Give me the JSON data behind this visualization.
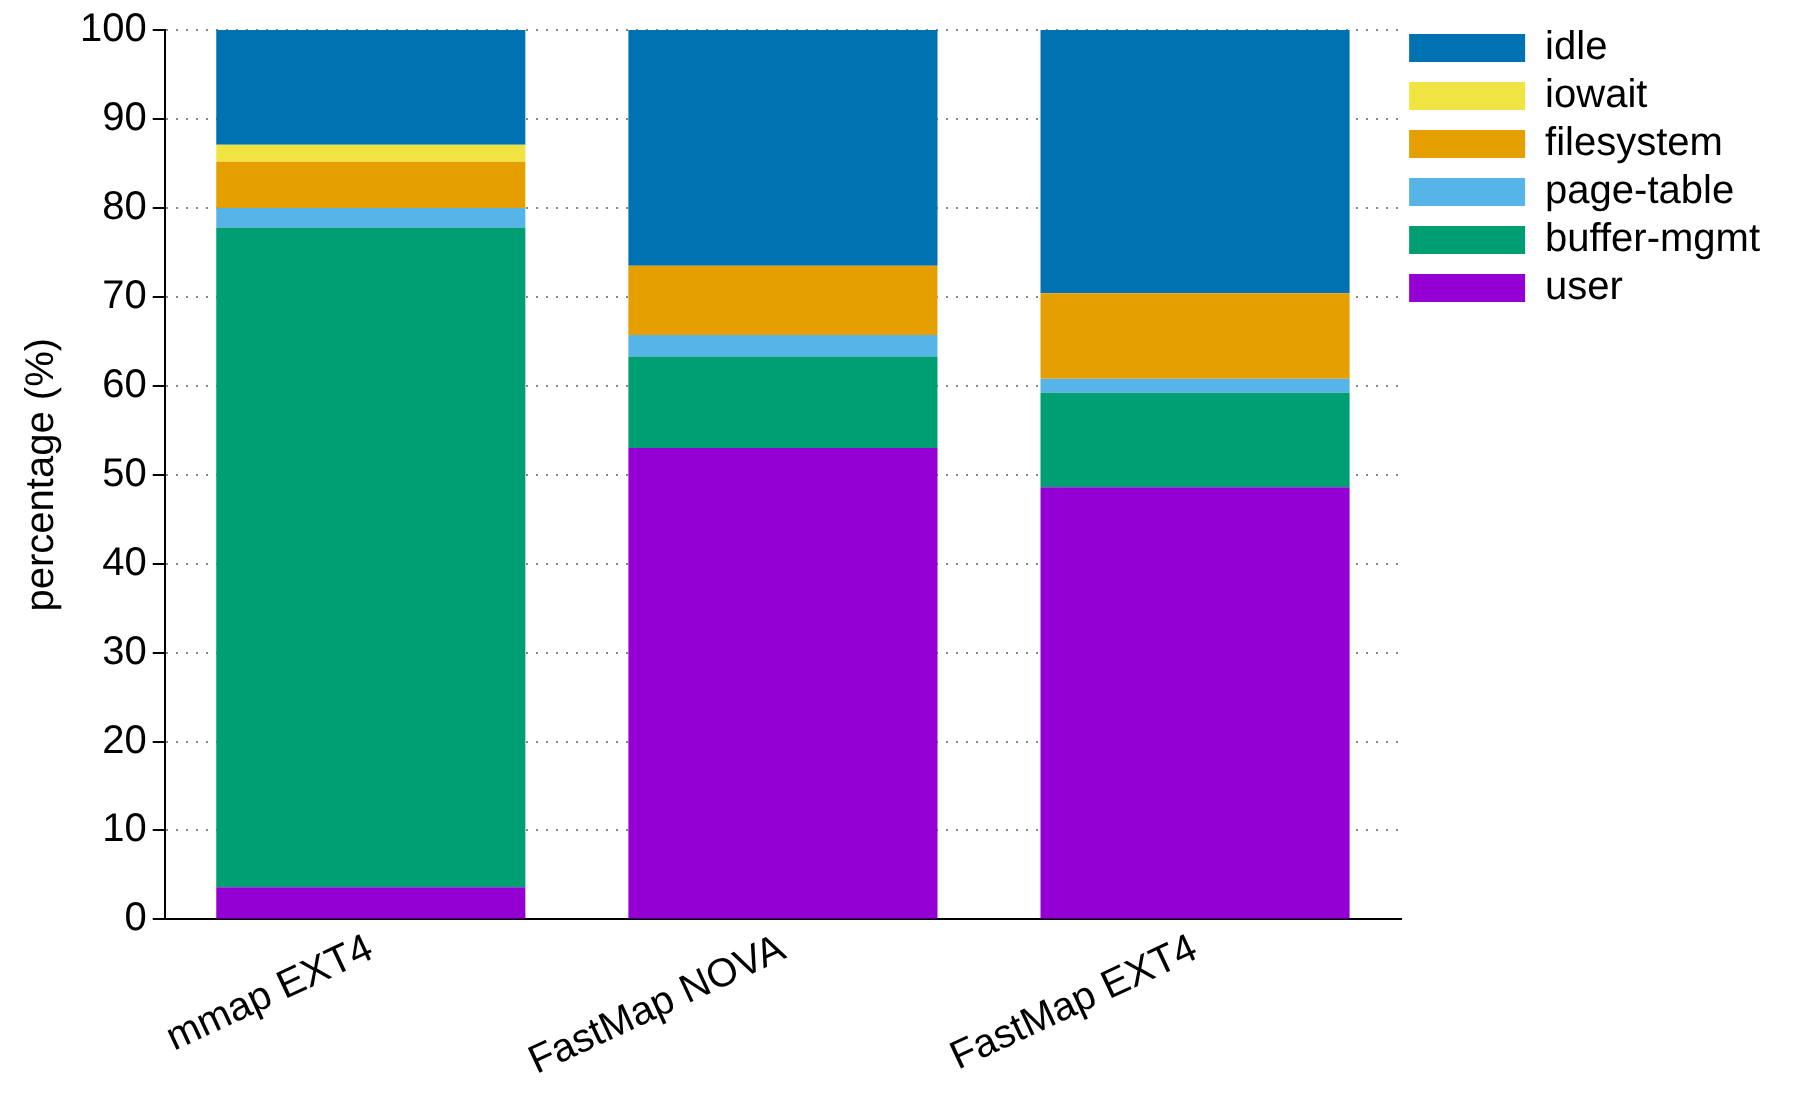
{
  "chart_data": {
    "type": "bar",
    "stacked": true,
    "ylabel": "percentage (%)",
    "categories": [
      "mmap EXT4",
      "FastMap NOVA",
      "FastMap EXT4"
    ],
    "series": [
      {
        "name": "user",
        "color": "#9400d3",
        "values": [
          3.6,
          53.0,
          48.6
        ]
      },
      {
        "name": "buffer-mgmt",
        "color": "#009e73",
        "values": [
          74.2,
          10.3,
          10.6
        ]
      },
      {
        "name": "page-table",
        "color": "#56b4e9",
        "values": [
          2.2,
          2.4,
          1.6
        ]
      },
      {
        "name": "filesystem",
        "color": "#e69f00",
        "values": [
          5.2,
          7.8,
          9.6
        ]
      },
      {
        "name": "iowait",
        "color": "#f0e442",
        "values": [
          1.9,
          0,
          0
        ]
      },
      {
        "name": "idle",
        "color": "#0072b2",
        "values": [
          12.9,
          26.5,
          29.6
        ]
      }
    ],
    "ylim": [
      0,
      100
    ],
    "yticks": [
      0,
      10,
      20,
      30,
      40,
      50,
      60,
      70,
      80,
      90,
      100
    ],
    "grid": "y",
    "legend": "top right"
  }
}
